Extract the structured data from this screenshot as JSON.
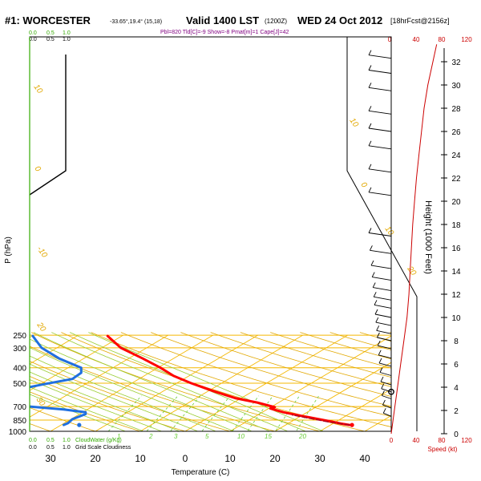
{
  "header": {
    "station": "#1: WORCESTER",
    "coords": "-33.65°,19.4° (15,18)",
    "valid": "Valid 1400 LST",
    "utc": "(1200Z)",
    "date": "WED 24 Oct 2012",
    "forecast": "[18hrFcst@2156z]",
    "indices": "Pbl=820 Tld[C]=-9 Show=-8 Pmat[m]=1 Cape[J]=42"
  },
  "cloud_scales": {
    "top_green": [
      "0.0",
      "0.5",
      "1.0"
    ],
    "top_black": [
      "0.0",
      "0.5",
      "1.0"
    ],
    "bottom_green": [
      "0.0",
      "0.5",
      "1.0"
    ],
    "bottom_green_label": "CloudWater (g/Kg)",
    "bottom_black": [
      "0.0",
      "0.5",
      "1.0"
    ],
    "bottom_black_label": "Grid Scale Cloudiness"
  },
  "speed_axis": {
    "top_ticks": [
      "0",
      "40",
      "80",
      "120"
    ],
    "bottom_ticks": [
      "0",
      "40",
      "80",
      "120"
    ],
    "label": "Speed (kt)"
  },
  "colors": {
    "temperature": "#ff0000",
    "dewpoint": "#1f6fe0",
    "parcel": "#b00020",
    "isotherm": "#f5b800",
    "dry_adiabat": "#e2a800",
    "moist_adiabat": "#9acd32",
    "mixing_ratio": "#66cc33",
    "speed": "#cc0000"
  },
  "chart_data": {
    "type": "line",
    "title": "",
    "xlabel": "Temperature (C)",
    "ylabel": "P (hPa)",
    "y2label": "Height (1000 Feet)",
    "x_ticks": [
      "30",
      "20",
      "10",
      "0",
      "10",
      "20",
      "30",
      "40"
    ],
    "x_tick_values": [
      -30,
      -20,
      -10,
      0,
      10,
      20,
      30,
      40
    ],
    "xlim": [
      -35,
      45
    ],
    "ylim": [
      1000,
      250
    ],
    "pressure_levels": [
      250,
      300,
      400,
      500,
      700,
      850,
      1000
    ],
    "pressure_labels": [
      "250",
      "300",
      "400",
      "500",
      "700",
      "850",
      "1000"
    ],
    "height_ticks": [
      "0",
      "2",
      "4",
      "6",
      "8",
      "10",
      "12",
      "14",
      "16",
      "18",
      "20",
      "22",
      "24",
      "26",
      "28",
      "30",
      "32"
    ],
    "isotherm_labels": [
      {
        "t": -60,
        "text": "0"
      },
      {
        "t": -50,
        "text": "10"
      },
      {
        "t": -40,
        "text": "20"
      },
      {
        "t": -30,
        "text": "30"
      }
    ],
    "adiabat_labels": [
      "10",
      "0",
      "-10",
      "20",
      "30",
      "10",
      "0",
      "10",
      "20",
      "30"
    ],
    "mixing_labels": [
      "1",
      "2",
      "3",
      "5",
      "10",
      "15",
      "20"
    ],
    "series": [
      {
        "name": "temperature",
        "points": [
          [
            -20,
            253
          ],
          [
            -17,
            300
          ],
          [
            -12,
            350
          ],
          [
            -8,
            400
          ],
          [
            -5,
            450
          ],
          [
            -1,
            500
          ],
          [
            4,
            560
          ],
          [
            9,
            620
          ],
          [
            14,
            660
          ],
          [
            17,
            695
          ],
          [
            18,
            705
          ],
          [
            17,
            720
          ],
          [
            20,
            760
          ],
          [
            24,
            800
          ],
          [
            28,
            840
          ],
          [
            31,
            870
          ],
          [
            33,
            895
          ],
          [
            35,
            913
          ]
        ]
      },
      {
        "name": "dewpoint",
        "points": [
          [
            -37,
            253
          ],
          [
            -35,
            300
          ],
          [
            -31,
            350
          ],
          [
            -26,
            400
          ],
          [
            -26,
            430
          ],
          [
            -28,
            470
          ],
          [
            -35,
            510
          ],
          [
            -42,
            560
          ],
          [
            -44,
            600
          ],
          [
            -45,
            650
          ],
          [
            -43,
            680
          ],
          [
            -30,
            730
          ],
          [
            -25,
            760
          ],
          [
            -25,
            780
          ],
          [
            -28,
            840
          ],
          [
            -29,
            890
          ],
          [
            -30,
            913
          ]
        ]
      },
      {
        "name": "parcel",
        "points": [
          [
            35,
            913
          ],
          [
            30,
            870
          ],
          [
            26,
            830
          ],
          [
            22,
            790
          ]
        ]
      }
    ],
    "surface_markers": [
      {
        "name": "temperature",
        "t": 37,
        "p": 913
      },
      {
        "name": "dewpoint",
        "t": -25,
        "p": 913
      }
    ],
    "speed_profile": {
      "x_unit": "kt",
      "y_unit": "kft",
      "points": [
        [
          0,
          0
        ],
        [
          5,
          2
        ],
        [
          10,
          4
        ],
        [
          15,
          6
        ],
        [
          20,
          8
        ],
        [
          25,
          10
        ],
        [
          28,
          12
        ],
        [
          30,
          14
        ],
        [
          32,
          16
        ],
        [
          34,
          18
        ],
        [
          37,
          20
        ],
        [
          40,
          22
        ],
        [
          44,
          24
        ],
        [
          48,
          26
        ],
        [
          52,
          28
        ],
        [
          58,
          30
        ],
        [
          66,
          32
        ],
        [
          72,
          33.5
        ]
      ]
    },
    "wind_barbs": [
      {
        "kft": 1.5
      },
      {
        "kft": 2.2
      },
      {
        "kft": 3.0
      },
      {
        "kft": 3.6
      },
      {
        "kft": 4.2
      },
      {
        "kft": 5.0
      },
      {
        "kft": 5.8
      },
      {
        "kft": 6.5
      },
      {
        "kft": 7.3
      },
      {
        "kft": 8.0
      },
      {
        "kft": 8.6
      },
      {
        "kft": 9.3
      },
      {
        "kft": 10.0
      },
      {
        "kft": 10.8
      },
      {
        "kft": 11.5
      },
      {
        "kft": 12.3
      },
      {
        "kft": 13.2
      },
      {
        "kft": 14.2
      },
      {
        "kft": 15.5
      },
      {
        "kft": 17.0
      },
      {
        "kft": 20.5
      },
      {
        "kft": 22.5
      },
      {
        "kft": 24.5
      },
      {
        "kft": 26.0
      },
      {
        "kft": 27.5
      },
      {
        "kft": 29.5
      },
      {
        "kft": 31.0
      },
      {
        "kft": 32.3
      }
    ]
  }
}
